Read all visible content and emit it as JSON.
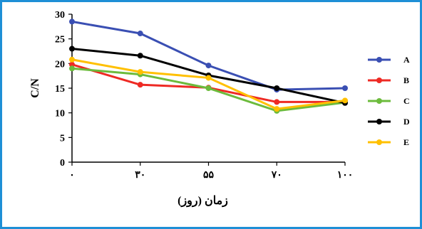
{
  "chart_data": {
    "type": "line",
    "categories": [
      "۰",
      "۳۰",
      "۵۵",
      "۷۰",
      "۱۰۰"
    ],
    "series": [
      {
        "name": "A",
        "color": "#3a4fb3",
        "values": [
          28.5,
          26.1,
          19.6,
          14.7,
          15.0
        ]
      },
      {
        "name": "B",
        "color": "#ee2a24",
        "values": [
          19.8,
          15.7,
          15.1,
          12.2,
          12.2
        ]
      },
      {
        "name": "C",
        "color": "#6cbb3c",
        "values": [
          19.0,
          17.8,
          15.0,
          10.4,
          12.1
        ]
      },
      {
        "name": "D",
        "color": "#000000",
        "values": [
          23.0,
          21.6,
          17.6,
          15.0,
          12.0
        ]
      },
      {
        "name": "E",
        "color": "#ffc000",
        "values": [
          20.8,
          18.3,
          17.1,
          10.8,
          12.5
        ]
      }
    ],
    "xlabel": "زمان (روز)",
    "ylabel": "C/N",
    "ylim": [
      0,
      30
    ],
    "yticks": [
      0,
      5,
      10,
      15,
      20,
      25,
      30
    ],
    "grid": false,
    "legend": "right"
  }
}
